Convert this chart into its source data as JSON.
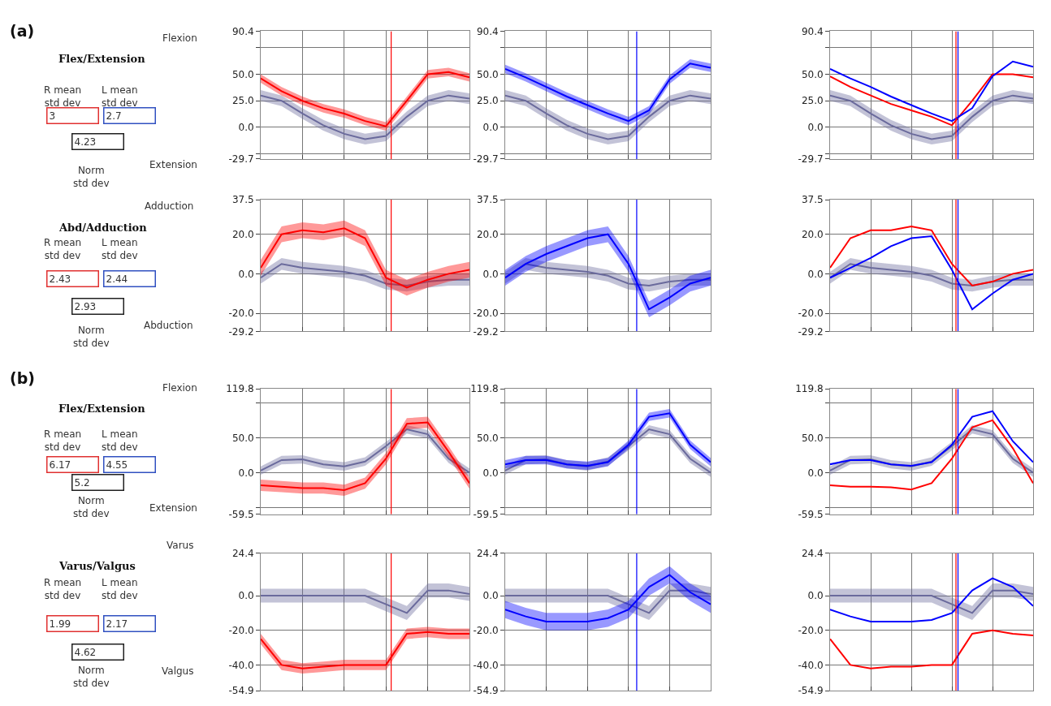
{
  "chart_data": [
    {
      "type": "line",
      "categories": [
        null,
        null,
        null,
        null,
        null,
        null,
        null,
        null,
        null,
        null,
        null
      ],
      "ylim": [
        -29.7,
        90.4
      ],
      "yticks": [
        90.4,
        {
          "value": 75,
          "label": null
        },
        {
          "value": 50,
          "label": "50.0"
        },
        {
          "value": 25,
          "label": "25.0"
        },
        {
          "value": 0,
          "label": "0.0"
        },
        {
          "value": -25,
          "label": null
        },
        -29.7
      ],
      "tick_labels": "y",
      "grid": true,
      "marker": "none",
      "annotations": [
        "(a)",
        "Flex/Extension",
        "R mean\nstd dev",
        "L mean\nstd dev",
        "3",
        "2.7",
        "4.23",
        "Norm\nstd dev",
        "Flexion",
        "Extension"
      ],
      "series": [
        {
          "color": "#6a6a9c",
          "values": [
            30,
            25,
            13,
            2,
            -6,
            -11,
            -8,
            10,
            25,
            30,
            27
          ],
          "lower": [
            25,
            20,
            8,
            -3,
            -11,
            -16,
            -13,
            5,
            20,
            25,
            22
          ],
          "upper": [
            35,
            30,
            18,
            7,
            -1,
            -6,
            -3,
            15,
            30,
            35,
            32
          ]
        },
        {
          "color": "#ff0000",
          "values": [
            46,
            34,
            25,
            18,
            13,
            6,
            1,
            25,
            50,
            52,
            47
          ],
          "lower": [
            42,
            30,
            21,
            14,
            9,
            2,
            -3,
            21,
            46,
            48,
            43
          ],
          "upper": [
            50,
            38,
            29,
            22,
            17,
            10,
            5,
            29,
            54,
            56,
            51
          ]
        }
      ]
    },
    {
      "type": "line",
      "categories": [
        null,
        null,
        null,
        null,
        null,
        null,
        null,
        null,
        null,
        null,
        null
      ],
      "ylim": [
        -29.7,
        90.4
      ],
      "yticks": [
        90.4,
        {
          "value": 75,
          "label": null
        },
        {
          "value": 50,
          "label": "50.0"
        },
        {
          "value": 25,
          "label": "25.0"
        },
        {
          "value": 0,
          "label": "0.0"
        },
        {
          "value": -25,
          "label": null
        },
        -29.7
      ],
      "tick_labels": "y",
      "grid": true,
      "marker": "none",
      "series": [
        {
          "color": "#6a6a9c",
          "values": [
            30,
            25,
            13,
            2,
            -6,
            -11,
            -8,
            10,
            25,
            30,
            27
          ],
          "lower": [
            25,
            20,
            8,
            -3,
            -11,
            -16,
            -13,
            5,
            20,
            25,
            22
          ],
          "upper": [
            35,
            30,
            18,
            7,
            -1,
            -6,
            -3,
            15,
            30,
            35,
            32
          ]
        },
        {
          "color": "#0000ff",
          "values": [
            55,
            47,
            38,
            29,
            21,
            13,
            6,
            16,
            45,
            60,
            56
          ],
          "lower": [
            51,
            43,
            34,
            25,
            17,
            9,
            2,
            12,
            41,
            56,
            52
          ],
          "upper": [
            59,
            51,
            42,
            33,
            25,
            17,
            10,
            20,
            49,
            64,
            60
          ]
        }
      ]
    },
    {
      "type": "line",
      "categories": [
        null,
        null,
        null,
        null,
        null,
        null,
        null,
        null,
        null,
        null,
        null
      ],
      "ylim": [
        -29.7,
        90.4
      ],
      "yticks": [
        90.4,
        {
          "value": 75,
          "label": null
        },
        {
          "value": 50,
          "label": "50.0"
        },
        {
          "value": 25,
          "label": "25.0"
        },
        {
          "value": 0,
          "label": "0.0"
        },
        {
          "value": -25,
          "label": null
        },
        -29.7
      ],
      "tick_labels": "y",
      "grid": true,
      "marker": "none",
      "series": [
        {
          "color": "#6a6a9c",
          "values": [
            30,
            25,
            13,
            2,
            -6,
            -11,
            -8,
            10,
            25,
            30,
            27
          ],
          "lower": [
            25,
            20,
            8,
            -3,
            -11,
            -16,
            -13,
            5,
            20,
            25,
            22
          ],
          "upper": [
            35,
            30,
            18,
            7,
            -1,
            -6,
            -3,
            15,
            30,
            35,
            32
          ]
        },
        {
          "color": "#ff0000",
          "values": [
            48,
            38,
            30,
            22,
            16,
            10,
            2,
            25,
            50,
            50,
            47
          ]
        },
        {
          "color": "#0000ff",
          "values": [
            55,
            46,
            38,
            29,
            21,
            13,
            6,
            18,
            48,
            62,
            57
          ]
        }
      ]
    },
    {
      "type": "line",
      "categories": [
        null,
        null,
        null,
        null,
        null,
        null,
        null,
        null,
        null,
        null,
        null
      ],
      "ylim": [
        -29.2,
        37.5
      ],
      "yticks": [
        37.5,
        {
          "value": 20,
          "label": "20.0"
        },
        {
          "value": 0,
          "label": "0.0"
        },
        {
          "value": -20,
          "label": "-20.0"
        },
        -29.2
      ],
      "tick_labels": "y",
      "grid": true,
      "marker": "none",
      "annotations": [
        "Abd/Adduction",
        "R mean\nstd dev",
        "L mean\nstd dev",
        "2.43",
        "2.44",
        "2.93",
        "Norm\nstd dev",
        "Adduction",
        "Abduction"
      ],
      "series": [
        {
          "color": "#6a6a9c",
          "values": [
            -2,
            5,
            3,
            2,
            1,
            -1,
            -5,
            -6,
            -4,
            -3,
            -3
          ],
          "lower": [
            -5,
            2,
            0,
            -1,
            -2,
            -4,
            -8,
            -9,
            -7,
            -6,
            -6
          ],
          "upper": [
            1,
            8,
            6,
            5,
            4,
            2,
            -2,
            -3,
            -1,
            0,
            0
          ]
        },
        {
          "color": "#ff0000",
          "values": [
            3,
            20,
            22,
            21,
            23,
            18,
            -2,
            -7,
            -3,
            0,
            2
          ],
          "lower": [
            -1,
            16,
            18,
            17,
            19,
            14,
            -6,
            -11,
            -7,
            -4,
            -2
          ],
          "upper": [
            7,
            24,
            26,
            25,
            27,
            22,
            2,
            -3,
            1,
            4,
            6
          ]
        }
      ]
    },
    {
      "type": "line",
      "categories": [
        null,
        null,
        null,
        null,
        null,
        null,
        null,
        null,
        null,
        null,
        null
      ],
      "ylim": [
        -29.2,
        37.5
      ],
      "yticks": [
        37.5,
        {
          "value": 20,
          "label": "20.0"
        },
        {
          "value": 0,
          "label": "0.0"
        },
        {
          "value": -20,
          "label": "-20.0"
        },
        -29.2
      ],
      "tick_labels": "y",
      "grid": true,
      "marker": "none",
      "series": [
        {
          "color": "#6a6a9c",
          "values": [
            -2,
            5,
            3,
            2,
            1,
            -1,
            -5,
            -6,
            -4,
            -3,
            -3
          ],
          "lower": [
            -5,
            2,
            0,
            -1,
            -2,
            -4,
            -8,
            -9,
            -7,
            -6,
            -6
          ],
          "upper": [
            1,
            8,
            6,
            5,
            4,
            2,
            -2,
            -3,
            -1,
            0,
            0
          ]
        },
        {
          "color": "#0000ff",
          "values": [
            -2,
            5,
            10,
            14,
            18,
            20,
            5,
            -18,
            -12,
            -5,
            -2
          ],
          "lower": [
            -6,
            1,
            6,
            10,
            14,
            16,
            1,
            -22,
            -16,
            -9,
            -6
          ],
          "upper": [
            2,
            9,
            14,
            18,
            22,
            24,
            9,
            -14,
            -8,
            -1,
            2
          ]
        }
      ]
    },
    {
      "type": "line",
      "categories": [
        null,
        null,
        null,
        null,
        null,
        null,
        null,
        null,
        null,
        null,
        null
      ],
      "ylim": [
        -29.2,
        37.5
      ],
      "yticks": [
        37.5,
        {
          "value": 20,
          "label": "20.0"
        },
        {
          "value": 0,
          "label": "0.0"
        },
        {
          "value": -20,
          "label": "-20.0"
        },
        -29.2
      ],
      "tick_labels": "y",
      "grid": true,
      "marker": "none",
      "series": [
        {
          "color": "#6a6a9c",
          "values": [
            -2,
            5,
            3,
            2,
            1,
            -1,
            -5,
            -6,
            -4,
            -3,
            -3
          ],
          "lower": [
            -5,
            2,
            0,
            -1,
            -2,
            -4,
            -8,
            -9,
            -7,
            -6,
            -6
          ],
          "upper": [
            1,
            8,
            6,
            5,
            4,
            2,
            -2,
            -3,
            -1,
            0,
            0
          ]
        },
        {
          "color": "#ff0000",
          "values": [
            3,
            18,
            22,
            22,
            24,
            22,
            5,
            -6,
            -4,
            0,
            2
          ]
        },
        {
          "color": "#0000ff",
          "values": [
            -2,
            3,
            8,
            14,
            18,
            19,
            2,
            -18,
            -10,
            -3,
            0
          ]
        }
      ]
    },
    {
      "type": "line",
      "categories": [
        null,
        null,
        null,
        null,
        null,
        null,
        null,
        null,
        null,
        null,
        null
      ],
      "ylim": [
        -59.5,
        119.8
      ],
      "yticks": [
        119.8,
        {
          "value": 100,
          "label": null
        },
        {
          "value": 50,
          "label": "50.0"
        },
        {
          "value": 0,
          "label": "0.0"
        },
        {
          "value": -50,
          "label": null
        },
        -59.5
      ],
      "tick_labels": "y",
      "grid": true,
      "marker": "none",
      "annotations": [
        "(b)",
        "Flex/Extension",
        "R mean\nstd dev",
        "L mean\nstd dev",
        "6.17",
        "4.55",
        "5.2",
        "Norm\nstd dev",
        "Flexion",
        "Extension"
      ],
      "series": [
        {
          "color": "#6a6a9c",
          "values": [
            3,
            18,
            19,
            12,
            9,
            16,
            38,
            62,
            55,
            20,
            0
          ],
          "lower": [
            -3,
            12,
            13,
            6,
            3,
            10,
            32,
            56,
            49,
            14,
            -6
          ],
          "upper": [
            9,
            24,
            25,
            18,
            15,
            22,
            44,
            68,
            61,
            26,
            6
          ]
        },
        {
          "color": "#ff0000",
          "values": [
            -18,
            -20,
            -22,
            -22,
            -25,
            -15,
            20,
            70,
            72,
            30,
            -15
          ],
          "lower": [
            -26,
            -28,
            -30,
            -30,
            -33,
            -23,
            12,
            62,
            64,
            22,
            -23
          ],
          "upper": [
            -10,
            -12,
            -14,
            -14,
            -17,
            -7,
            28,
            78,
            80,
            38,
            -7
          ]
        }
      ]
    },
    {
      "type": "line",
      "categories": [
        null,
        null,
        null,
        null,
        null,
        null,
        null,
        null,
        null,
        null,
        null
      ],
      "ylim": [
        -59.5,
        119.8
      ],
      "yticks": [
        119.8,
        {
          "value": 100,
          "label": null
        },
        {
          "value": 50,
          "label": "50.0"
        },
        {
          "value": 0,
          "label": "0.0"
        },
        {
          "value": -50,
          "label": null
        },
        -59.5
      ],
      "tick_labels": "y",
      "grid": true,
      "marker": "none",
      "series": [
        {
          "color": "#6a6a9c",
          "values": [
            3,
            18,
            19,
            12,
            9,
            16,
            38,
            62,
            55,
            20,
            0
          ],
          "lower": [
            -3,
            12,
            13,
            6,
            3,
            10,
            32,
            56,
            49,
            14,
            -6
          ],
          "upper": [
            9,
            24,
            25,
            18,
            15,
            22,
            44,
            68,
            61,
            26,
            6
          ]
        },
        {
          "color": "#0000ff",
          "values": [
            12,
            18,
            18,
            12,
            10,
            15,
            40,
            80,
            85,
            40,
            15
          ],
          "lower": [
            6,
            12,
            12,
            6,
            4,
            9,
            34,
            74,
            79,
            34,
            9
          ],
          "upper": [
            18,
            24,
            24,
            18,
            16,
            21,
            46,
            86,
            91,
            46,
            21
          ]
        }
      ]
    },
    {
      "type": "line",
      "categories": [
        null,
        null,
        null,
        null,
        null,
        null,
        null,
        null,
        null,
        null,
        null
      ],
      "ylim": [
        -59.5,
        119.8
      ],
      "yticks": [
        119.8,
        {
          "value": 100,
          "label": null
        },
        {
          "value": 50,
          "label": "50.0"
        },
        {
          "value": 0,
          "label": "0.0"
        },
        {
          "value": -50,
          "label": null
        },
        -59.5
      ],
      "tick_labels": "y",
      "grid": true,
      "marker": "none",
      "series": [
        {
          "color": "#6a6a9c",
          "values": [
            3,
            18,
            19,
            12,
            9,
            16,
            38,
            62,
            55,
            20,
            0
          ],
          "lower": [
            -3,
            12,
            13,
            6,
            3,
            10,
            32,
            56,
            49,
            14,
            -6
          ],
          "upper": [
            9,
            24,
            25,
            18,
            15,
            22,
            44,
            68,
            61,
            26,
            6
          ]
        },
        {
          "color": "#ff0000",
          "values": [
            -18,
            -20,
            -20,
            -21,
            -24,
            -15,
            20,
            65,
            75,
            35,
            -15
          ]
        },
        {
          "color": "#0000ff",
          "values": [
            12,
            18,
            18,
            12,
            10,
            15,
            40,
            80,
            88,
            45,
            15
          ]
        }
      ]
    },
    {
      "type": "line",
      "categories": [
        null,
        null,
        null,
        null,
        null,
        null,
        null,
        null,
        null,
        null,
        null
      ],
      "ylim": [
        -54.9,
        24.4
      ],
      "yticks": [
        24.4,
        {
          "value": 0,
          "label": "0.0"
        },
        {
          "value": -20,
          "label": "-20.0"
        },
        {
          "value": -40,
          "label": "-40.0"
        },
        -54.9
      ],
      "tick_labels": "y",
      "grid": true,
      "marker": "none",
      "annotations": [
        "Varus/Valgus",
        "R mean\nstd dev",
        "L mean\nstd dev",
        "1.99",
        "2.17",
        "4.62",
        "Norm\nstd dev",
        "Varus",
        "Valgus"
      ],
      "series": [
        {
          "color": "#6a6a9c",
          "values": [
            0,
            0,
            0,
            0,
            0,
            0,
            -5,
            -10,
            3,
            3,
            1
          ],
          "lower": [
            -4,
            -4,
            -4,
            -4,
            -4,
            -4,
            -9,
            -14,
            -1,
            -1,
            -3
          ],
          "upper": [
            4,
            4,
            4,
            4,
            4,
            4,
            -1,
            -6,
            7,
            7,
            5
          ]
        },
        {
          "color": "#ff0000",
          "values": [
            -25,
            -40,
            -42,
            -41,
            -40,
            -40,
            -40,
            -22,
            -21,
            -22,
            -22
          ],
          "lower": [
            -28,
            -43,
            -45,
            -44,
            -43,
            -43,
            -43,
            -25,
            -24,
            -25,
            -25
          ],
          "upper": [
            -22,
            -37,
            -39,
            -38,
            -37,
            -37,
            -37,
            -19,
            -18,
            -19,
            -19
          ]
        }
      ]
    },
    {
      "type": "line",
      "categories": [
        null,
        null,
        null,
        null,
        null,
        null,
        null,
        null,
        null,
        null,
        null
      ],
      "ylim": [
        -54.9,
        24.4
      ],
      "yticks": [
        24.4,
        {
          "value": 0,
          "label": "0.0"
        },
        {
          "value": -20,
          "label": "-20.0"
        },
        {
          "value": -40,
          "label": "-40.0"
        },
        -54.9
      ],
      "tick_labels": "y",
      "grid": true,
      "marker": "none",
      "series": [
        {
          "color": "#6a6a9c",
          "values": [
            0,
            0,
            0,
            0,
            0,
            0,
            -5,
            -10,
            3,
            3,
            1
          ],
          "lower": [
            -4,
            -4,
            -4,
            -4,
            -4,
            -4,
            -9,
            -14,
            -1,
            -1,
            -3
          ],
          "upper": [
            4,
            4,
            4,
            4,
            4,
            4,
            -1,
            -6,
            7,
            7,
            5
          ]
        },
        {
          "color": "#0000ff",
          "values": [
            -8,
            -12,
            -15,
            -15,
            -15,
            -13,
            -8,
            5,
            12,
            2,
            -5
          ],
          "lower": [
            -13,
            -17,
            -20,
            -20,
            -20,
            -18,
            -13,
            0,
            7,
            -3,
            -10
          ],
          "upper": [
            -3,
            -7,
            -10,
            -10,
            -10,
            -8,
            -3,
            10,
            17,
            7,
            0
          ]
        }
      ]
    },
    {
      "type": "line",
      "categories": [
        null,
        null,
        null,
        null,
        null,
        null,
        null,
        null,
        null,
        null,
        null
      ],
      "ylim": [
        -54.9,
        24.4
      ],
      "yticks": [
        24.4,
        {
          "value": 0,
          "label": "0.0"
        },
        {
          "value": -20,
          "label": "-20.0"
        },
        {
          "value": -40,
          "label": "-40.0"
        },
        -54.9
      ],
      "tick_labels": "y",
      "grid": true,
      "marker": "none",
      "series": [
        {
          "color": "#6a6a9c",
          "values": [
            0,
            0,
            0,
            0,
            0,
            0,
            -5,
            -10,
            3,
            3,
            1
          ],
          "lower": [
            -4,
            -4,
            -4,
            -4,
            -4,
            -4,
            -9,
            -14,
            -1,
            -1,
            -3
          ],
          "upper": [
            4,
            4,
            4,
            4,
            4,
            4,
            -1,
            -6,
            7,
            7,
            5
          ]
        },
        {
          "color": "#ff0000",
          "values": [
            -25,
            -40,
            -42,
            -41,
            -41,
            -40,
            -40,
            -22,
            -20,
            -22,
            -23
          ]
        },
        {
          "color": "#0000ff",
          "values": [
            -8,
            -12,
            -15,
            -15,
            -15,
            -14,
            -10,
            3,
            10,
            5,
            -6
          ]
        }
      ]
    }
  ]
}
